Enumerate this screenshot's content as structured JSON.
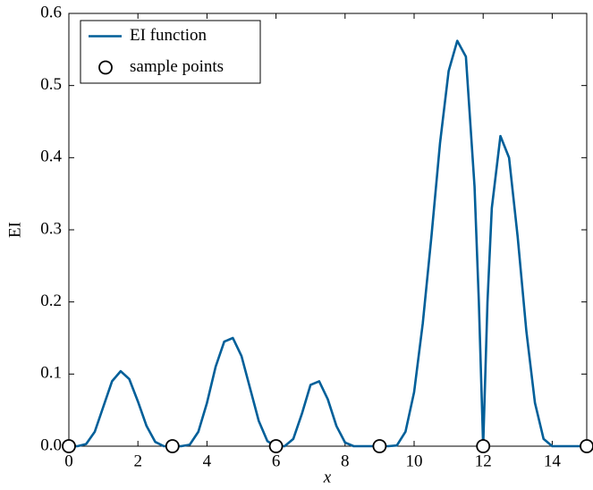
{
  "chart_data": {
    "type": "line",
    "xlabel": "x",
    "ylabel": "EI",
    "xlim": [
      0,
      15
    ],
    "xticks": [
      0,
      2,
      4,
      6,
      8,
      10,
      12,
      14
    ],
    "ylim": [
      0,
      0.6
    ],
    "yticks": [
      {
        "value": 0,
        "label": "0.0"
      },
      0.1,
      0.2,
      0.3,
      0.4,
      0.5,
      0.6
    ],
    "legend": "upper left",
    "series": [
      {
        "name": "EI function",
        "type": "line",
        "color": "#005f99",
        "x": [
          0,
          0.25,
          0.5,
          0.75,
          1,
          1.25,
          1.5,
          1.75,
          2,
          2.25,
          2.5,
          2.75,
          3,
          3.25,
          3.5,
          3.75,
          4,
          4.25,
          4.5,
          4.75,
          5,
          5.25,
          5.5,
          5.75,
          6,
          6.25,
          6.5,
          6.75,
          7,
          7.25,
          7.5,
          7.75,
          8,
          8.25,
          8.5,
          8.75,
          9,
          9.25,
          9.5,
          9.75,
          10,
          10.25,
          10.5,
          10.75,
          11,
          11.25,
          11.5,
          11.75,
          11.875,
          12,
          12.125,
          12.25,
          12.5,
          12.75,
          13,
          13.25,
          13.5,
          13.75,
          14,
          14.25,
          14.5,
          14.75,
          15
        ],
        "values": [
          0,
          0,
          0.003,
          0.02,
          0.055,
          0.09,
          0.104,
          0.093,
          0.062,
          0.028,
          0.006,
          0,
          0,
          0,
          0.002,
          0.02,
          0.06,
          0.11,
          0.145,
          0.15,
          0.125,
          0.08,
          0.035,
          0.007,
          0,
          0,
          0.01,
          0.045,
          0.085,
          0.09,
          0.065,
          0.028,
          0.005,
          0,
          0,
          0,
          0,
          0,
          0.001,
          0.02,
          0.075,
          0.17,
          0.29,
          0.42,
          0.52,
          0.562,
          0.54,
          0.36,
          0.2,
          0,
          0.2,
          0.33,
          0.43,
          0.4,
          0.29,
          0.16,
          0.06,
          0.01,
          0,
          0,
          0,
          0,
          0
        ]
      },
      {
        "name": "sample points",
        "type": "scatter",
        "color": "#000000",
        "x": [
          0,
          3,
          6,
          9,
          12,
          15
        ],
        "values": [
          0,
          0,
          0,
          0,
          0,
          0
        ]
      }
    ]
  }
}
